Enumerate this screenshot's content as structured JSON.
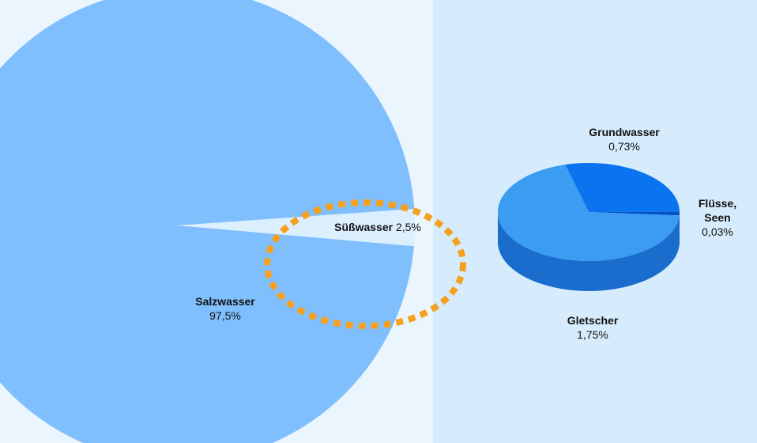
{
  "chart_data": [
    {
      "type": "pie",
      "categories": [
        "Salzwasser",
        "Süßwasser"
      ],
      "values": [
        97.5,
        2.5
      ],
      "value_labels": [
        "97,5%",
        "2,5%"
      ],
      "colors": [
        "#80bffd",
        "#dcefff"
      ]
    },
    {
      "type": "pie3d",
      "categories": [
        "Grundwasser",
        "Flüsse, Seen",
        "Gletscher"
      ],
      "values": [
        0.73,
        0.03,
        1.75
      ],
      "value_labels": [
        "0,73%",
        "0,03%",
        "1,75%"
      ],
      "colors": [
        "#0a73ef",
        "#0050c8",
        "#3c9cf2"
      ]
    }
  ]
}
